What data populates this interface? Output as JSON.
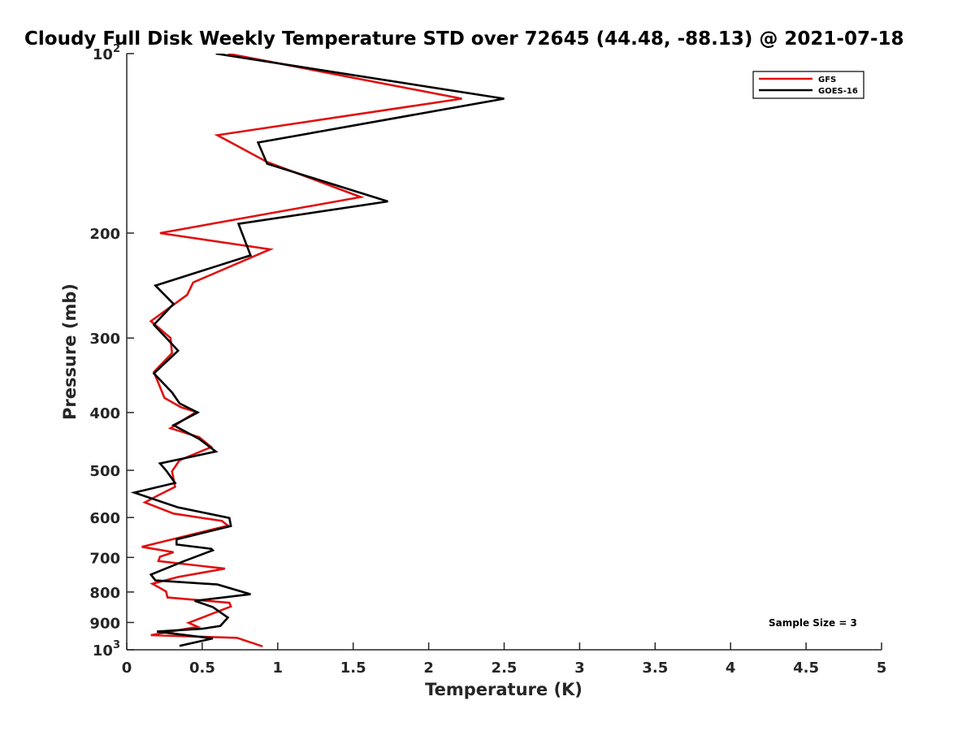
{
  "chart_data": {
    "type": "line",
    "title": "Cloudy Full Disk Weekly Temperature STD over 72645 (44.48, -88.13) @ 2021-07-18",
    "xlabel": "Temperature (K)",
    "ylabel": "Pressure (mb)",
    "xlim": [
      0,
      5
    ],
    "ylim": [
      100,
      1000
    ],
    "y_scale": "log",
    "y_reversed": true,
    "grid": false,
    "legend_position": "top-right",
    "x_ticks": [
      0,
      0.5,
      1,
      1.5,
      2,
      2.5,
      3,
      3.5,
      4,
      4.5,
      5
    ],
    "x_tick_labels": [
      "0",
      "0.5",
      "1",
      "1.5",
      "2",
      "2.5",
      "3",
      "3.5",
      "4",
      "4.5",
      "5"
    ],
    "y_ticks": [
      {
        "value": 100,
        "base": "10",
        "exp": "2"
      },
      {
        "value": 200,
        "label": "200"
      },
      {
        "value": 300,
        "label": "300"
      },
      {
        "value": 400,
        "label": "400"
      },
      {
        "value": 500,
        "label": "500"
      },
      {
        "value": 600,
        "label": "600"
      },
      {
        "value": 700,
        "label": "700"
      },
      {
        "value": 800,
        "label": "800"
      },
      {
        "value": 900,
        "label": "900"
      },
      {
        "value": 1000,
        "base": "10",
        "exp": "3"
      }
    ],
    "annotation": "Sample Size = 3",
    "series": [
      {
        "name": "GFS",
        "color": "#e01010",
        "points": [
          [
            0.67,
            100
          ],
          [
            2.22,
            119
          ],
          [
            0.6,
            137
          ],
          [
            0.93,
            152
          ],
          [
            1.55,
            174
          ],
          [
            0.22,
            200
          ],
          [
            0.95,
            213
          ],
          [
            0.44,
            242
          ],
          [
            0.4,
            254
          ],
          [
            0.16,
            281
          ],
          [
            0.29,
            300
          ],
          [
            0.3,
            318
          ],
          [
            0.18,
            342
          ],
          [
            0.25,
            378
          ],
          [
            0.36,
            392
          ],
          [
            0.46,
            399
          ],
          [
            0.29,
            425
          ],
          [
            0.48,
            440
          ],
          [
            0.56,
            457
          ],
          [
            0.35,
            481
          ],
          [
            0.3,
            502
          ],
          [
            0.32,
            533
          ],
          [
            0.2,
            552
          ],
          [
            0.12,
            566
          ],
          [
            0.31,
            591
          ],
          [
            0.63,
            608
          ],
          [
            0.67,
            619
          ],
          [
            0.1,
            672
          ],
          [
            0.31,
            686
          ],
          [
            0.22,
            698
          ],
          [
            0.21,
            710
          ],
          [
            0.65,
            731
          ],
          [
            0.34,
            755
          ],
          [
            0.17,
            775
          ],
          [
            0.26,
            798
          ],
          [
            0.27,
            817
          ],
          [
            0.68,
            834
          ],
          [
            0.69,
            846
          ],
          [
            0.41,
            901
          ],
          [
            0.47,
            915
          ],
          [
            0.16,
            945
          ],
          [
            0.73,
            955
          ],
          [
            0.9,
            987
          ]
        ]
      },
      {
        "name": "GOES-16",
        "color": "#000000",
        "points": [
          [
            0.59,
            100
          ],
          [
            2.5,
            119
          ],
          [
            0.87,
            141
          ],
          [
            0.93,
            153
          ],
          [
            1.73,
            177
          ],
          [
            0.74,
            193
          ],
          [
            0.82,
            218
          ],
          [
            0.19,
            245
          ],
          [
            0.31,
            263
          ],
          [
            0.18,
            285
          ],
          [
            0.3,
            307
          ],
          [
            0.34,
            315
          ],
          [
            0.18,
            344
          ],
          [
            0.3,
            370
          ],
          [
            0.35,
            386
          ],
          [
            0.47,
            400
          ],
          [
            0.31,
            420
          ],
          [
            0.48,
            443
          ],
          [
            0.59,
            465
          ],
          [
            0.22,
            487
          ],
          [
            0.26,
            500
          ],
          [
            0.32,
            525
          ],
          [
            0.05,
            545
          ],
          [
            0.34,
            577
          ],
          [
            0.68,
            601
          ],
          [
            0.69,
            620
          ],
          [
            0.33,
            653
          ],
          [
            0.33,
            666
          ],
          [
            0.56,
            677
          ],
          [
            0.57,
            681
          ],
          [
            0.38,
            710
          ],
          [
            0.16,
            748
          ],
          [
            0.19,
            765
          ],
          [
            0.6,
            777
          ],
          [
            0.82,
            807
          ],
          [
            0.45,
            828
          ],
          [
            0.57,
            848
          ],
          [
            0.67,
            883
          ],
          [
            0.62,
            912
          ],
          [
            0.5,
            922
          ],
          [
            0.2,
            932
          ],
          [
            0.57,
            957
          ],
          [
            0.35,
            985
          ]
        ]
      }
    ]
  }
}
